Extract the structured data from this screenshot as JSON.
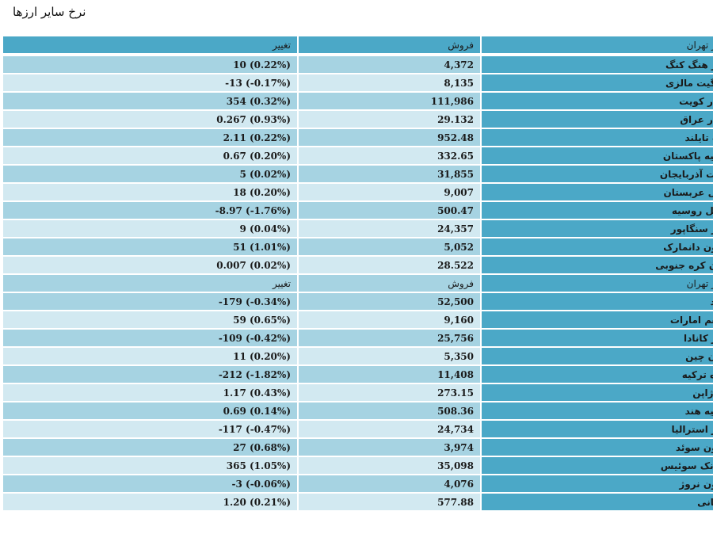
{
  "page_title": "نرخ سایر ارزها",
  "header": {
    "market": "بازار تهران",
    "sell": "فروش",
    "change": "تغییر"
  },
  "group1": [
    {
      "name": "دلار هنگ کنگ",
      "sell": "4,372",
      "change": "10 (0.22%)"
    },
    {
      "name": "رینگیت مالزی",
      "sell": "8,135",
      "change": "-13 (-0.17%)"
    },
    {
      "name": "دینار کویت",
      "sell": "111,986",
      "change": "354 (0.32%)"
    },
    {
      "name": "دینار عراق",
      "sell": "29.132",
      "change": "0.267 (0.93%)"
    },
    {
      "name": "بات تایلند",
      "sell": "952.48",
      "change": "2.11 (0.22%)"
    },
    {
      "name": "روپیه پاکستان",
      "sell": "332.65",
      "change": "0.67 (0.20%)"
    },
    {
      "name": "منات آذربایجان",
      "sell": "31,855",
      "change": "5 (0.02%)"
    },
    {
      "name": "ریال عربستان",
      "sell": "9,007",
      "change": "18 (0.20%)"
    },
    {
      "name": "روبل روسیه",
      "sell": "500.47",
      "change": "-8.97 (-1.76%)"
    },
    {
      "name": "دلار سنگاپور",
      "sell": "24,357",
      "change": "9 (0.04%)"
    },
    {
      "name": "کرون دانمارک",
      "sell": "5,052",
      "change": "51 (1.01%)"
    },
    {
      "name": "وون کره جنوبی",
      "sell": "28.522",
      "change": "0.007 (0.02%)"
    }
  ],
  "subheader": {
    "market": "بازار تهران",
    "sell": "فروش",
    "change": "تغییر"
  },
  "group2": [
    {
      "name": "پوند",
      "sell": "52,500",
      "change": "-179 (-0.34%)"
    },
    {
      "name": "درهم امارات",
      "sell": "9,160",
      "change": "59 (0.65%)"
    },
    {
      "name": "دلار کانادا",
      "sell": "25,756",
      "change": "-109 (-0.42%)"
    },
    {
      "name": "یوان چین",
      "sell": "5,350",
      "change": "11 (0.20%)"
    },
    {
      "name": "لیره ترکیه",
      "sell": "11,408",
      "change": "-212 (-1.82%)"
    },
    {
      "name": "ین ژاپن",
      "sell": "273.15",
      "change": "1.17 (0.43%)"
    },
    {
      "name": "روپیه هند",
      "sell": "508.36",
      "change": "0.69 (0.14%)"
    },
    {
      "name": "دلار استرالیا",
      "sell": "24,734",
      "change": "-117 (-0.47%)"
    },
    {
      "name": "کرون سوئد",
      "sell": "3,974",
      "change": "27 (0.68%)"
    },
    {
      "name": "فرانک سوئیس",
      "sell": "35,098",
      "change": "365 (1.05%)"
    },
    {
      "name": "کرون نروژ",
      "sell": "4,076",
      "change": "-3 (-0.06%)"
    },
    {
      "name": "افغانی",
      "sell": "577.88",
      "change": "1.20 (0.21%)"
    }
  ]
}
